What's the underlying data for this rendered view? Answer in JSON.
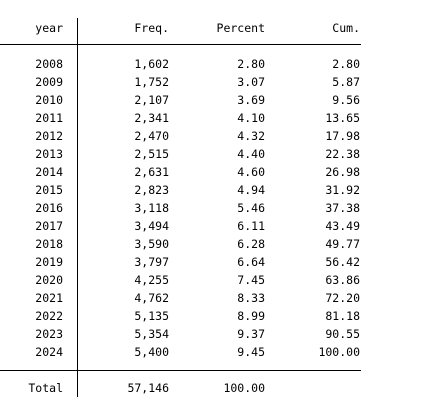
{
  "table": {
    "headers": {
      "year": "year",
      "freq": "Freq.",
      "percent": "Percent",
      "cum": "Cum."
    },
    "rows": [
      {
        "year": "2008",
        "freq": "1,602",
        "percent": "2.80",
        "cum": "2.80"
      },
      {
        "year": "2009",
        "freq": "1,752",
        "percent": "3.07",
        "cum": "5.87"
      },
      {
        "year": "2010",
        "freq": "2,107",
        "percent": "3.69",
        "cum": "9.56"
      },
      {
        "year": "2011",
        "freq": "2,341",
        "percent": "4.10",
        "cum": "13.65"
      },
      {
        "year": "2012",
        "freq": "2,470",
        "percent": "4.32",
        "cum": "17.98"
      },
      {
        "year": "2013",
        "freq": "2,515",
        "percent": "4.40",
        "cum": "22.38"
      },
      {
        "year": "2014",
        "freq": "2,631",
        "percent": "4.60",
        "cum": "26.98"
      },
      {
        "year": "2015",
        "freq": "2,823",
        "percent": "4.94",
        "cum": "31.92"
      },
      {
        "year": "2016",
        "freq": "3,118",
        "percent": "5.46",
        "cum": "37.38"
      },
      {
        "year": "2017",
        "freq": "3,494",
        "percent": "6.11",
        "cum": "43.49"
      },
      {
        "year": "2018",
        "freq": "3,590",
        "percent": "6.28",
        "cum": "49.77"
      },
      {
        "year": "2019",
        "freq": "3,797",
        "percent": "6.64",
        "cum": "56.42"
      },
      {
        "year": "2020",
        "freq": "4,255",
        "percent": "7.45",
        "cum": "63.86"
      },
      {
        "year": "2021",
        "freq": "4,762",
        "percent": "8.33",
        "cum": "72.20"
      },
      {
        "year": "2022",
        "freq": "5,135",
        "percent": "8.99",
        "cum": "81.18"
      },
      {
        "year": "2023",
        "freq": "5,354",
        "percent": "9.37",
        "cum": "90.55"
      },
      {
        "year": "2024",
        "freq": "5,400",
        "percent": "9.45",
        "cum": "100.00"
      }
    ],
    "total": {
      "label": "Total",
      "freq": "57,146",
      "percent": "100.00"
    }
  }
}
